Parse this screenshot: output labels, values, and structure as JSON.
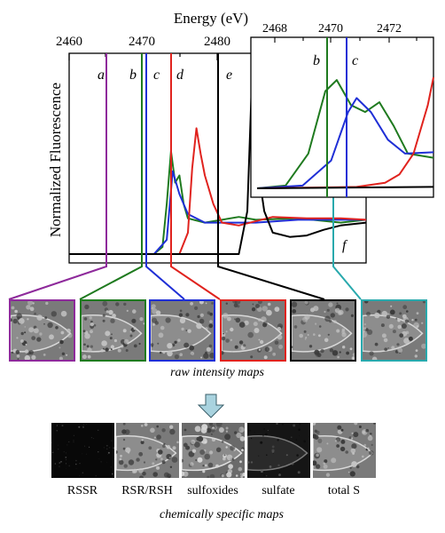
{
  "title": "Energy (eV)",
  "ylabel": "Normalized Fluorescence",
  "main_ticks": [
    "2460",
    "2470",
    "2480"
  ],
  "inset_ticks": [
    "2468",
    "2470",
    "2472"
  ],
  "main_letters": [
    "a",
    "b",
    "c",
    "d",
    "e",
    "f"
  ],
  "inset_letters": [
    "b",
    "c"
  ],
  "colors": {
    "a": "#8e2a9b",
    "b": "#1f7a1f",
    "c": "#1f2fd6",
    "d": "#e0231e",
    "e": "#000000",
    "f": "#29a9ad",
    "arrow": "#a9d3df"
  },
  "raw_caption": "raw intensity maps",
  "chem_caption": "chemically specific maps",
  "chem_labels": [
    "RSSR",
    "RSR/RSH",
    "sulfoxides",
    "sulfate",
    "total S"
  ],
  "chart_data": {
    "type": "line",
    "xlabel": "Energy (eV)",
    "ylabel": "Normalized Fluorescence",
    "xlim": [
      2458,
      2493
    ],
    "series": [
      {
        "color": "green",
        "x": [
          2458,
          2468,
          2469,
          2469.5,
          2470,
          2470.5,
          2471,
          2471.5,
          2472,
          2474,
          2478,
          2480,
          2485,
          2490,
          2493
        ],
        "y": [
          0,
          0,
          0.05,
          0.35,
          0.72,
          0.5,
          0.55,
          0.35,
          0.25,
          0.22,
          0.26,
          0.24,
          0.25,
          0.22,
          0.24
        ]
      },
      {
        "color": "blue",
        "x": [
          2458,
          2468,
          2469.5,
          2470.2,
          2471,
          2472,
          2474,
          2478,
          2480,
          2485,
          2490,
          2493
        ],
        "y": [
          0,
          0,
          0.1,
          0.58,
          0.42,
          0.28,
          0.22,
          0.22,
          0.22,
          0.24,
          0.24,
          0.24
        ]
      },
      {
        "color": "red",
        "x": [
          2458,
          2471,
          2472,
          2472.5,
          2473,
          2473.5,
          2474,
          2475,
          2476,
          2478,
          2482,
          2486,
          2490,
          2493
        ],
        "y": [
          0,
          0,
          0.15,
          0.6,
          0.88,
          0.7,
          0.55,
          0.35,
          0.22,
          0.2,
          0.26,
          0.25,
          0.25,
          0.24
        ]
      },
      {
        "color": "black",
        "x": [
          2458,
          2478,
          2479,
          2479.5,
          2480,
          2480.5,
          2481,
          2482,
          2484,
          2486,
          2488,
          2490,
          2493
        ],
        "y": [
          0,
          0,
          0.3,
          1.15,
          0.9,
          0.5,
          0.3,
          0.15,
          0.12,
          0.13,
          0.17,
          0.2,
          0.22
        ]
      }
    ]
  },
  "inset_chart_data": {
    "type": "line",
    "xlim": [
      2467,
      2473.2
    ],
    "series": [
      {
        "color": "green",
        "x": [
          2467,
          2468,
          2468.8,
          2469.4,
          2469.8,
          2470.3,
          2470.8,
          2471.3,
          2471.8,
          2472.3,
          2473.2
        ],
        "y": [
          0,
          0.02,
          0.25,
          0.7,
          0.78,
          0.6,
          0.55,
          0.62,
          0.45,
          0.25,
          0.22
        ]
      },
      {
        "color": "blue",
        "x": [
          2467,
          2468.6,
          2469.6,
          2470.2,
          2470.5,
          2471,
          2471.6,
          2472.2,
          2473.2
        ],
        "y": [
          0,
          0.02,
          0.2,
          0.55,
          0.65,
          0.55,
          0.35,
          0.25,
          0.26
        ]
      },
      {
        "color": "red",
        "x": [
          2467,
          2470.5,
          2471.5,
          2472,
          2472.5,
          2473,
          2473.2
        ],
        "y": [
          0,
          0.01,
          0.04,
          0.1,
          0.25,
          0.6,
          0.8
        ]
      },
      {
        "color": "black",
        "x": [
          2467,
          2473.2
        ],
        "y": [
          0,
          0.01
        ]
      }
    ]
  }
}
